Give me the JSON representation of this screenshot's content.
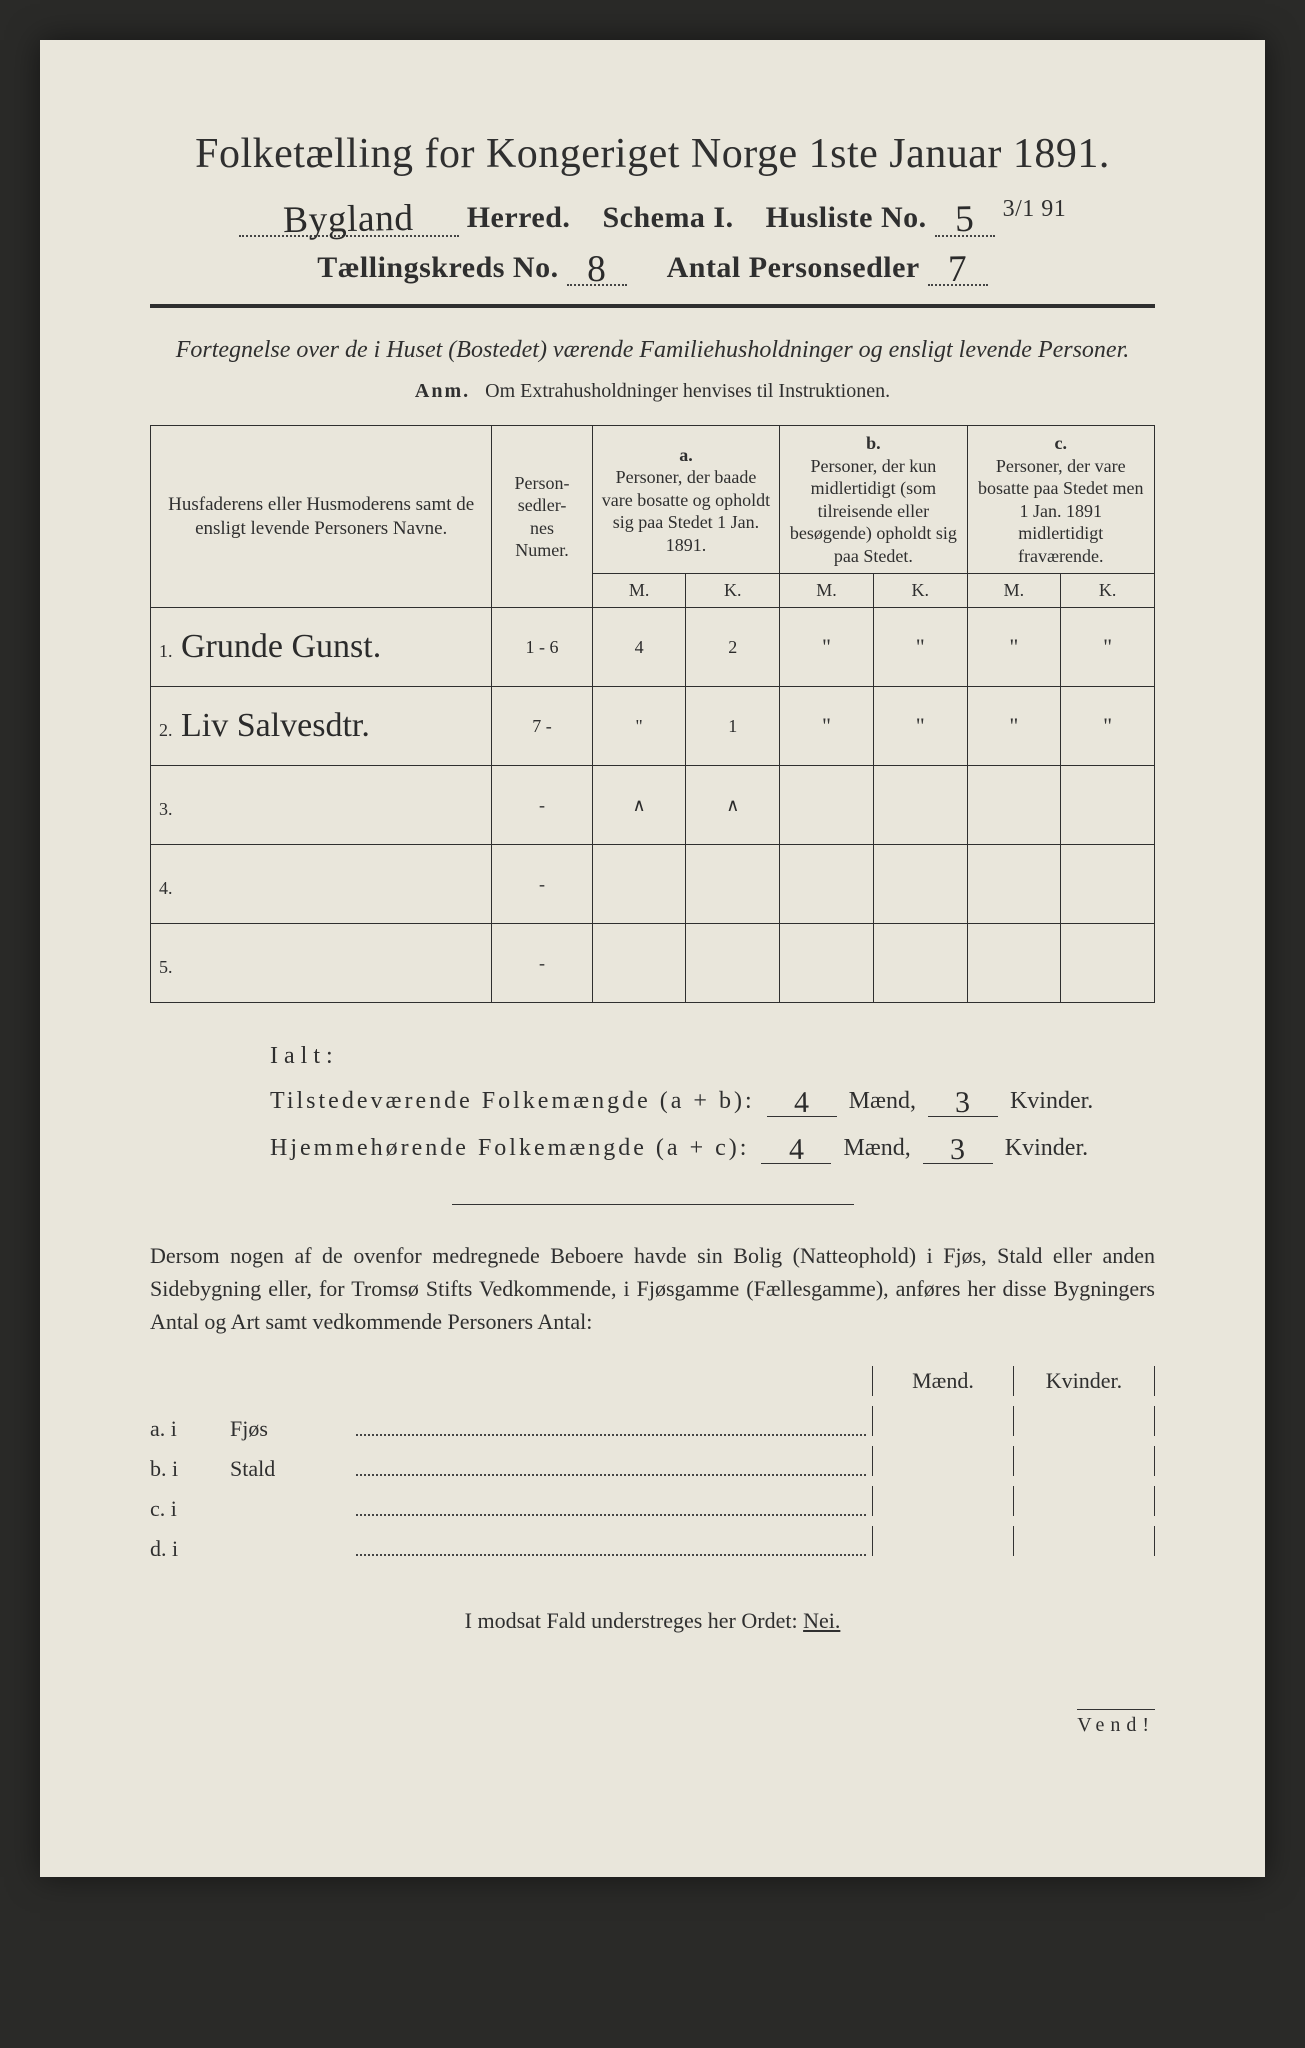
{
  "header": {
    "title": "Folketælling for Kongeriget Norge 1ste Januar 1891.",
    "herred_label": "Herred.",
    "herred_value": "Bygland",
    "schema_label": "Schema I.",
    "husliste_label": "Husliste No.",
    "husliste_value": "5",
    "husliste_fraction": "3/1 91",
    "kreds_label": "Tællingskreds No.",
    "kreds_value": "8",
    "personsedler_label": "Antal Personsedler",
    "personsedler_value": "7"
  },
  "subtitle": "Fortegnelse over de i Huset (Bostedet) værende Familiehusholdninger og ensligt levende Personer.",
  "anm_label": "Anm.",
  "anm_text": "Om Extrahusholdninger henvises til Instruktionen.",
  "table": {
    "col_name": "Husfaderens eller Husmoderens samt de ensligt levende Personers Navne.",
    "col_num": "Person-\nsedler-\nnes\nNumer.",
    "group_a_letter": "a.",
    "group_a_text": "Personer, der baade vare bosatte og opholdt sig paa Stedet 1 Jan. 1891.",
    "group_b_letter": "b.",
    "group_b_text": "Personer, der kun midlertidigt (som tilreisende eller besøgende) opholdt sig paa Stedet.",
    "group_c_letter": "c.",
    "group_c_text": "Personer, der vare bosatte paa Stedet men 1 Jan. 1891 midlertidigt fraværende.",
    "M": "M.",
    "K": "K.",
    "rows": [
      {
        "idx": "1.",
        "name": "Grunde Gunst.",
        "num": "1 - 6",
        "aM": "4",
        "aK": "2",
        "bM": "\"",
        "bK": "\"",
        "cM": "\"",
        "cK": "\""
      },
      {
        "idx": "2.",
        "name": "Liv Salvesdtr.",
        "num": "7 -",
        "aM": "\"",
        "aK": "1",
        "bM": "\"",
        "bK": "\"",
        "cM": "\"",
        "cK": "\""
      },
      {
        "idx": "3.",
        "name": "",
        "num": "-",
        "aM": "∧",
        "aK": "∧",
        "bM": "",
        "bK": "",
        "cM": "",
        "cK": ""
      },
      {
        "idx": "4.",
        "name": "",
        "num": "-",
        "aM": "",
        "aK": "",
        "bM": "",
        "bK": "",
        "cM": "",
        "cK": ""
      },
      {
        "idx": "5.",
        "name": "",
        "num": "-",
        "aM": "",
        "aK": "",
        "bM": "",
        "bK": "",
        "cM": "",
        "cK": ""
      }
    ]
  },
  "ialt": {
    "label": "Ialt:",
    "row1_label": "Tilstedeværende Folkemængde (a + b):",
    "row2_label": "Hjemmehørende Folkemængde (a + c):",
    "maend": "Mænd,",
    "kvinder": "Kvinder.",
    "r1M": "4",
    "r1K": "3",
    "r2M": "4",
    "r2K": "3"
  },
  "paragraph": "Dersom nogen af de ovenfor medregnede Beboere havde sin Bolig (Natteophold) i Fjøs, Stald eller anden Sidebygning eller, for Tromsø Stifts Vedkommende, i Fjøsgamme (Fællesgamme), anføres her disse Bygningers Antal og Art samt vedkommende Personers Antal:",
  "mk_header": {
    "m": "Mænd.",
    "k": "Kvinder."
  },
  "abcd": [
    {
      "pre": "a.  i",
      "word": "Fjøs"
    },
    {
      "pre": "b.  i",
      "word": "Stald"
    },
    {
      "pre": "c.  i",
      "word": ""
    },
    {
      "pre": "d.  i",
      "word": ""
    }
  ],
  "nei_line_pre": "I modsat Fald understreges her Ordet: ",
  "nei_word": "Nei.",
  "vend": "Vend!"
}
